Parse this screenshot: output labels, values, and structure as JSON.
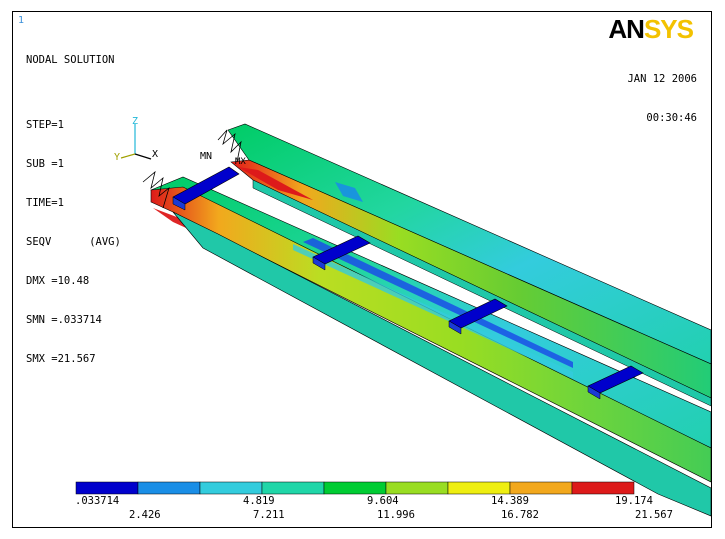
{
  "window_number": "1",
  "logo": {
    "part1": "AN",
    "part2": "SYS"
  },
  "date": "JAN 12 2006",
  "time": "00:30:46",
  "info_lines": [
    "NODAL SOLUTION",
    "",
    "STEP=1",
    "SUB =1",
    "TIME=1",
    "SEQV      (AVG)",
    "DMX =10.48",
    "SMN =.033714",
    "SMX =21.567"
  ],
  "triad": {
    "z": "Z",
    "y": "Y",
    "x": "X"
  },
  "markers": {
    "mn": "MN",
    "mx": "MX"
  },
  "legend": {
    "colors": [
      "#0000cc",
      "#1a8ee6",
      "#33ccdd",
      "#20d6a8",
      "#00cc33",
      "#99dd22",
      "#eeee11",
      "#f2a81d",
      "#dd1a1a"
    ],
    "top_labels": [
      ".033714",
      "4.819",
      "9.604",
      "14.389",
      "19.174"
    ],
    "bottom_labels": [
      "2.426",
      "7.211",
      "11.996",
      "16.782",
      "21.567"
    ]
  }
}
